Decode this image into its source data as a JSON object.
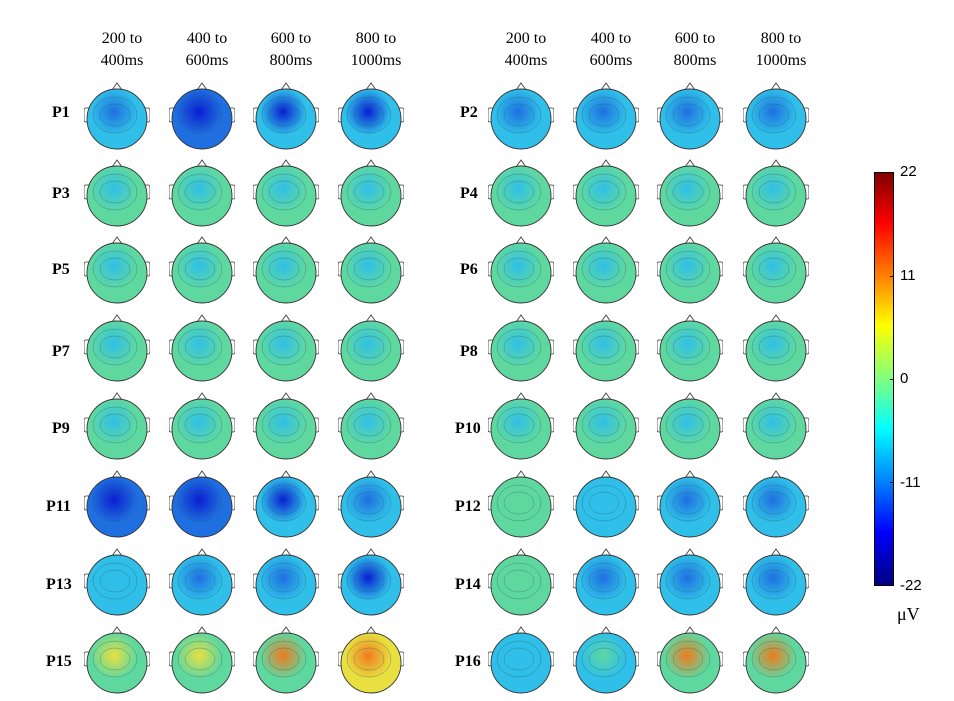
{
  "left_panel": {
    "columns": [
      {
        "line1": "200 to",
        "line2": "400ms"
      },
      {
        "line1": "400 to",
        "line2": "600ms"
      },
      {
        "line1": "600 to",
        "line2": "800ms"
      },
      {
        "line1": "800 to",
        "line2": "1000ms"
      }
    ],
    "rows": [
      "P1",
      "P3",
      "P5",
      "P7",
      "P9",
      "P11",
      "P13",
      "P15"
    ]
  },
  "right_panel": {
    "columns": [
      {
        "line1": "200 to",
        "line2": "400ms"
      },
      {
        "line1": "400 to",
        "line2": "600ms"
      },
      {
        "line1": "600 to",
        "line2": "800ms"
      },
      {
        "line1": "800 to",
        "line2": "1000ms"
      }
    ],
    "rows": [
      "P2",
      "P4",
      "P6",
      "P8",
      "P10",
      "P12",
      "P14",
      "P16"
    ]
  },
  "colorbar": {
    "ticks": [
      "22",
      "11",
      "0",
      "-11",
      "-22"
    ],
    "unit": "μV",
    "min": -22,
    "max": 22,
    "colors": [
      "#800000",
      "#ff0000",
      "#ff8000",
      "#ffff00",
      "#80ff80",
      "#00ffff",
      "#0080ff",
      "#0000ff",
      "#000080"
    ]
  }
}
